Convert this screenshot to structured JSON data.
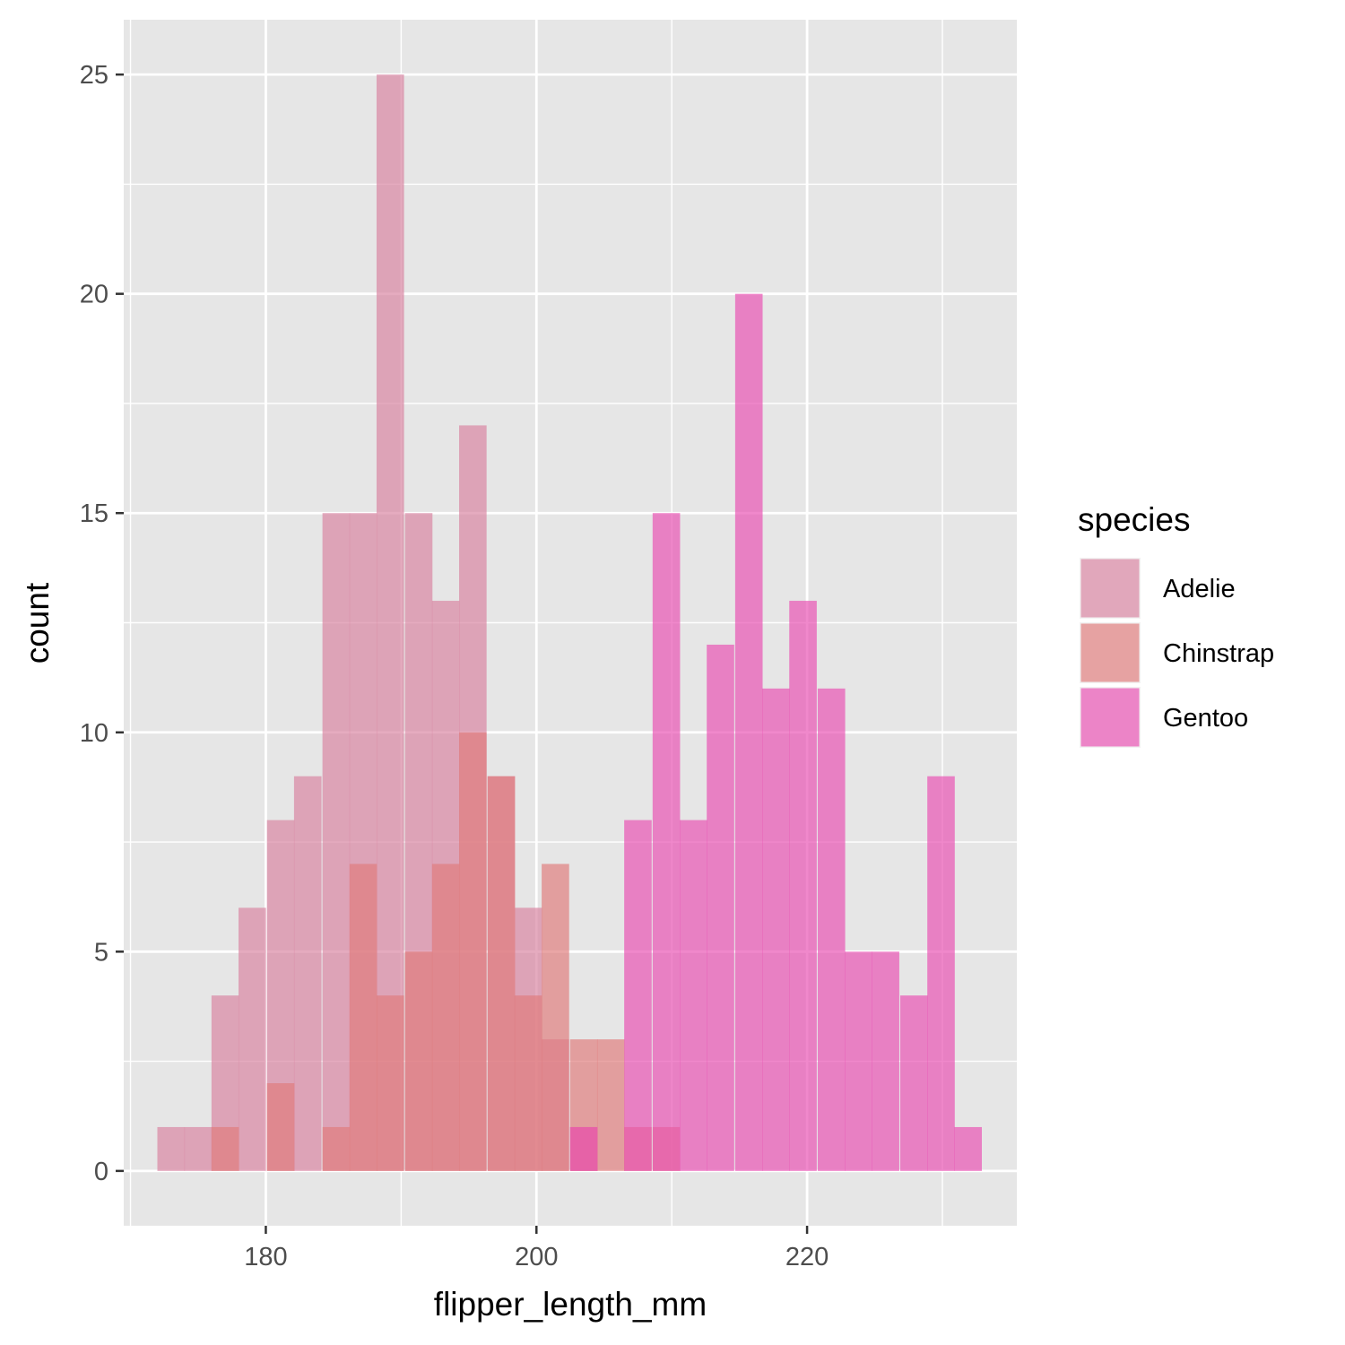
{
  "chart_data": {
    "type": "bar",
    "subtype": "histogram-overlapping",
    "xlabel": "flipper_length_mm",
    "ylabel": "count",
    "xlim": [
      169.5,
      235.5
    ],
    "ylim": [
      -1.25,
      26.25
    ],
    "bin_width": 2.03,
    "x_ticks": [
      180,
      200,
      220
    ],
    "x_minor_ticks": [
      170,
      190,
      210,
      230
    ],
    "y_ticks": [
      0,
      5,
      10,
      15,
      20,
      25
    ],
    "y_minor_ticks": [
      2.5,
      7.5,
      12.5,
      17.5,
      22.5
    ],
    "x_tick_labels": [
      "180",
      "200",
      "220"
    ],
    "y_tick_labels": [
      "0",
      "5",
      "10",
      "15",
      "20",
      "25"
    ],
    "grid": true,
    "legend": {
      "title": "species",
      "position": "right",
      "entries": [
        "Adelie",
        "Chinstrap",
        "Gentoo"
      ]
    },
    "series": [
      {
        "name": "Adelie",
        "color": "#d883a0",
        "bins": [
          {
            "x": 173.0,
            "count": 1
          },
          {
            "x": 175.0,
            "count": 1
          },
          {
            "x": 177.0,
            "count": 4
          },
          {
            "x": 179.0,
            "count": 6
          },
          {
            "x": 181.1,
            "count": 8
          },
          {
            "x": 183.1,
            "count": 9
          },
          {
            "x": 185.2,
            "count": 15
          },
          {
            "x": 187.2,
            "count": 15
          },
          {
            "x": 189.2,
            "count": 25
          },
          {
            "x": 191.3,
            "count": 15
          },
          {
            "x": 193.3,
            "count": 13
          },
          {
            "x": 195.3,
            "count": 17
          },
          {
            "x": 197.4,
            "count": 9
          },
          {
            "x": 199.4,
            "count": 6
          },
          {
            "x": 201.4,
            "count": 3
          },
          {
            "x": 203.5,
            "count": 1
          }
        ]
      },
      {
        "name": "Chinstrap",
        "color": "#e07c7c",
        "bins": [
          {
            "x": 177.0,
            "count": 1
          },
          {
            "x": 181.1,
            "count": 2
          },
          {
            "x": 185.2,
            "count": 1
          },
          {
            "x": 187.2,
            "count": 7
          },
          {
            "x": 189.2,
            "count": 4
          },
          {
            "x": 191.3,
            "count": 5
          },
          {
            "x": 193.3,
            "count": 7
          },
          {
            "x": 195.3,
            "count": 10
          },
          {
            "x": 197.4,
            "count": 9
          },
          {
            "x": 199.4,
            "count": 4
          },
          {
            "x": 201.4,
            "count": 7
          },
          {
            "x": 203.5,
            "count": 3
          },
          {
            "x": 205.5,
            "count": 3
          },
          {
            "x": 207.5,
            "count": 1
          },
          {
            "x": 209.6,
            "count": 1
          }
        ]
      },
      {
        "name": "Gentoo",
        "color": "#e94fb2",
        "bins": [
          {
            "x": 203.5,
            "count": 1
          },
          {
            "x": 207.5,
            "count": 8
          },
          {
            "x": 209.6,
            "count": 15
          },
          {
            "x": 211.6,
            "count": 8
          },
          {
            "x": 213.6,
            "count": 12
          },
          {
            "x": 215.7,
            "count": 20
          },
          {
            "x": 217.7,
            "count": 11
          },
          {
            "x": 219.7,
            "count": 13
          },
          {
            "x": 221.8,
            "count": 11
          },
          {
            "x": 223.8,
            "count": 5
          },
          {
            "x": 225.8,
            "count": 5
          },
          {
            "x": 227.9,
            "count": 4
          },
          {
            "x": 229.9,
            "count": 9
          },
          {
            "x": 231.9,
            "count": 1
          }
        ]
      }
    ]
  },
  "colors": {
    "panel_background": "#e6e6e6",
    "grid_major": "#ffffff",
    "tick_text": "#4d4d4d",
    "tick_mark": "#333333",
    "title_text": "#000000"
  }
}
